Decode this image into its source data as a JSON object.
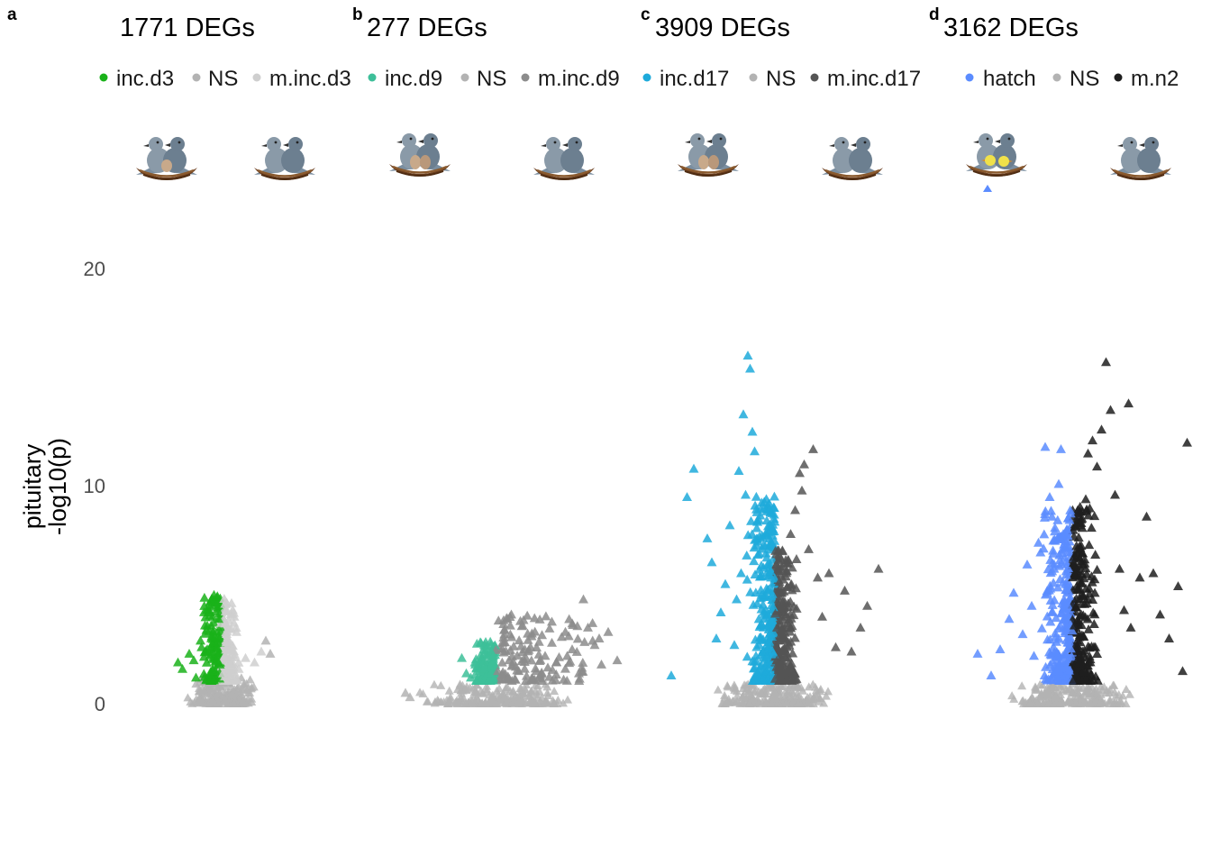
{
  "chart_data": {
    "type": "scatter",
    "ylabel_line1": "pituitary",
    "ylabel_line2": "-log10(p)",
    "ylim": [
      0,
      22
    ],
    "yticks": [
      0,
      10,
      20
    ],
    "ytick_labels": [
      "0",
      "10",
      "20"
    ],
    "grid": false,
    "marker": "triangle",
    "panels": [
      {
        "letter": "a",
        "title": "1771 DEGs",
        "legend": [
          {
            "label": "inc.d3",
            "color": "#1ab21a"
          },
          {
            "label": "NS",
            "color": "#b3b3b3"
          },
          {
            "label": "m.inc.d3",
            "color": "#cfcfcf"
          }
        ],
        "icons": [
          "nest-two-pigeons-one-egg",
          "nest-two-pigeons"
        ],
        "sig_left": [
          [
            -0.95,
            1.9
          ],
          [
            -0.85,
            1.6
          ],
          [
            -0.7,
            2.3
          ],
          [
            -0.55,
            1.2
          ],
          [
            -0.45,
            2.9
          ],
          [
            -0.35,
            3.6
          ],
          [
            -0.25,
            4.2
          ],
          [
            -0.2,
            3.1
          ],
          [
            -0.15,
            5.0
          ],
          [
            -0.12,
            1.5
          ],
          [
            -0.08,
            2.6
          ],
          [
            -0.05,
            3.9
          ],
          [
            -0.02,
            1.8
          ],
          [
            -0.6,
            2.0
          ],
          [
            -0.3,
            2.5
          ],
          [
            -0.18,
            4.0
          ]
        ],
        "sig_right": [
          [
            0.05,
            1.4
          ],
          [
            0.1,
            2.2
          ],
          [
            0.15,
            3.0
          ],
          [
            0.2,
            1.8
          ],
          [
            0.25,
            2.5
          ],
          [
            0.3,
            4.0
          ],
          [
            0.4,
            1.6
          ],
          [
            0.55,
            2.1
          ],
          [
            0.75,
            1.9
          ],
          [
            0.9,
            2.4
          ],
          [
            0.35,
            3.3
          ],
          [
            0.12,
            2.8
          ]
        ],
        "ns_color": "#b3b3b3",
        "outliers": [
          [
            1.0,
            2.9
          ],
          [
            1.1,
            2.3
          ]
        ]
      },
      {
        "letter": "b",
        "title": "277 DEGs",
        "legend": [
          {
            "label": "inc.d9",
            "color": "#3dbf99"
          },
          {
            "label": "NS",
            "color": "#b3b3b3"
          },
          {
            "label": "m.inc.d9",
            "color": "#8c8c8c"
          }
        ],
        "icons": [
          "nest-two-pigeons-two-eggs",
          "nest-two-pigeons"
        ],
        "sig_left": [
          [
            -0.75,
            2.1
          ],
          [
            -0.65,
            1.4
          ],
          [
            -0.55,
            1.2
          ],
          [
            -0.45,
            1.8
          ],
          [
            -0.35,
            1.5
          ],
          [
            -0.25,
            1.6
          ],
          [
            -0.2,
            1.3
          ],
          [
            -0.15,
            1.1
          ],
          [
            -0.1,
            1.4
          ]
        ],
        "sig_right": [
          [
            0.05,
            1.5
          ],
          [
            0.15,
            2.8
          ],
          [
            0.2,
            3.4
          ],
          [
            0.3,
            2.0
          ],
          [
            0.35,
            4.1
          ],
          [
            0.45,
            1.7
          ],
          [
            0.55,
            3.8
          ],
          [
            0.65,
            2.5
          ],
          [
            0.8,
            3.1
          ],
          [
            0.9,
            1.5
          ],
          [
            1.1,
            2.2
          ],
          [
            1.25,
            2.8
          ],
          [
            1.35,
            1.9
          ],
          [
            1.55,
            3.3
          ],
          [
            1.7,
            2.5
          ],
          [
            1.85,
            1.4
          ],
          [
            2.05,
            3.5
          ],
          [
            2.2,
            2.7
          ],
          [
            2.35,
            1.8
          ],
          [
            2.5,
            3.3
          ],
          [
            2.7,
            2.0
          ],
          [
            1.95,
            4.8
          ],
          [
            2.3,
            3.0
          ],
          [
            0.6,
            3.6
          ]
        ],
        "ns_color": "#b3b3b3",
        "outliers": [
          [
            -1.9,
            0.3
          ],
          [
            -2.0,
            0.5
          ]
        ]
      },
      {
        "letter": "c",
        "title": "3909 DEGs",
        "legend": [
          {
            "label": "inc.d17",
            "color": "#1eaadb"
          },
          {
            "label": "NS",
            "color": "#b3b3b3"
          },
          {
            "label": "m.inc.d17",
            "color": "#555555"
          }
        ],
        "icons": [
          "nest-two-pigeons-two-eggs",
          "nest-two-pigeons"
        ],
        "sig_left": [
          [
            -2.3,
            1.3
          ],
          [
            -1.95,
            9.5
          ],
          [
            -1.8,
            10.8
          ],
          [
            -1.5,
            7.6
          ],
          [
            -1.4,
            6.5
          ],
          [
            -1.3,
            3.0
          ],
          [
            -1.1,
            5.5
          ],
          [
            -1.0,
            8.2
          ],
          [
            -0.8,
            10.7
          ],
          [
            -0.7,
            13.3
          ],
          [
            -0.6,
            16.0
          ],
          [
            -0.55,
            15.4
          ],
          [
            -0.5,
            12.5
          ],
          [
            -0.45,
            11.6
          ],
          [
            -0.4,
            8.8
          ],
          [
            -0.35,
            6.9
          ],
          [
            -0.3,
            5.0
          ],
          [
            -0.25,
            7.3
          ],
          [
            -0.2,
            4.3
          ],
          [
            -0.15,
            3.6
          ],
          [
            -0.1,
            6.1
          ],
          [
            -0.05,
            2.4
          ],
          [
            -1.2,
            4.2
          ],
          [
            -0.9,
            2.7
          ],
          [
            -0.65,
            9.6
          ],
          [
            -0.75,
            6.0
          ],
          [
            -0.85,
            4.8
          ]
        ],
        "sig_right": [
          [
            0.05,
            3.5
          ],
          [
            0.1,
            5.6
          ],
          [
            0.2,
            4.4
          ],
          [
            0.3,
            6.6
          ],
          [
            0.35,
            7.8
          ],
          [
            0.45,
            8.9
          ],
          [
            0.55,
            10.6
          ],
          [
            0.65,
            11.0
          ],
          [
            0.75,
            7.1
          ],
          [
            0.85,
            11.7
          ],
          [
            0.95,
            5.8
          ],
          [
            1.05,
            4.0
          ],
          [
            1.2,
            6.0
          ],
          [
            1.35,
            2.6
          ],
          [
            1.55,
            5.2
          ],
          [
            1.7,
            2.4
          ],
          [
            2.05,
            4.5
          ],
          [
            2.3,
            6.2
          ],
          [
            1.9,
            3.5
          ],
          [
            0.6,
            9.8
          ]
        ],
        "ns_color": "#b3b3b3",
        "outliers": []
      },
      {
        "letter": "d",
        "title": "3162 DEGs",
        "legend": [
          {
            "label": "hatch",
            "color": "#5b8cff"
          },
          {
            "label": "NS",
            "color": "#b3b3b3"
          },
          {
            "label": "m.n2",
            "color": "#1e1e1e"
          }
        ],
        "icons": [
          "nest-two-pigeons-two-chicks",
          "nest-two-pigeons"
        ],
        "sig_left": [
          [
            -2.1,
            2.3
          ],
          [
            -1.8,
            1.3
          ],
          [
            -1.6,
            2.5
          ],
          [
            -1.3,
            5.1
          ],
          [
            -1.1,
            3.2
          ],
          [
            -1.0,
            6.4
          ],
          [
            -0.9,
            4.5
          ],
          [
            -0.75,
            7.4
          ],
          [
            -0.6,
            11.8
          ],
          [
            -0.5,
            9.5
          ],
          [
            -0.45,
            8.6
          ],
          [
            -0.4,
            6.2
          ],
          [
            -0.3,
            10.1
          ],
          [
            -0.25,
            11.7
          ],
          [
            -0.2,
            7.8
          ],
          [
            -0.15,
            5.5
          ],
          [
            -0.1,
            3.8
          ],
          [
            -0.05,
            2.6
          ],
          [
            -0.85,
            2.2
          ],
          [
            -1.4,
            3.9
          ]
        ],
        "sig_right": [
          [
            0.05,
            3.6
          ],
          [
            0.1,
            5.4
          ],
          [
            0.15,
            7.0
          ],
          [
            0.2,
            8.3
          ],
          [
            0.3,
            9.4
          ],
          [
            0.35,
            11.5
          ],
          [
            0.45,
            12.1
          ],
          [
            0.55,
            10.9
          ],
          [
            0.65,
            12.6
          ],
          [
            0.75,
            15.7
          ],
          [
            0.85,
            13.5
          ],
          [
            0.95,
            9.6
          ],
          [
            1.05,
            6.2
          ],
          [
            1.15,
            4.3
          ],
          [
            1.3,
            3.5
          ],
          [
            1.5,
            5.8
          ],
          [
            1.65,
            8.6
          ],
          [
            1.8,
            6.0
          ],
          [
            1.95,
            4.1
          ],
          [
            2.15,
            3.0
          ],
          [
            2.35,
            5.4
          ],
          [
            2.55,
            12.0
          ],
          [
            2.45,
            1.5
          ],
          [
            1.25,
            13.8
          ]
        ],
        "ns_color": "#b3b3b3",
        "outliers": []
      }
    ]
  }
}
